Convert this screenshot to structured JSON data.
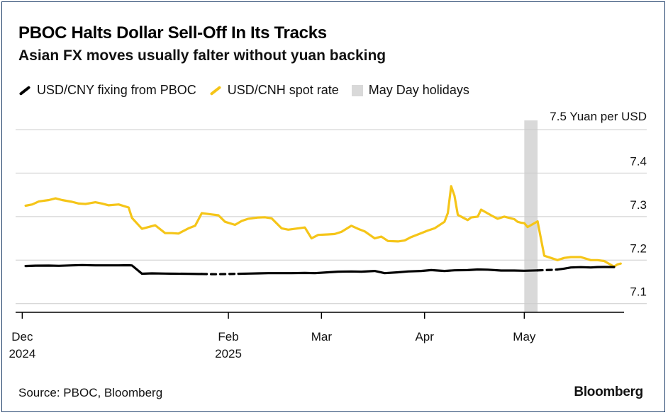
{
  "chart_data": {
    "type": "line",
    "title": "PBOC Halts Dollar Sell-Off In Its Tracks",
    "subtitle": "Asian FX moves usually falter without yuan backing",
    "y_unit_label": "7.5 Yuan per USD",
    "ylim": [
      7.08,
      7.5
    ],
    "yticks": [
      7.1,
      7.2,
      7.3,
      7.4
    ],
    "ytick_labels": [
      "7.1",
      "7.2",
      "7.3",
      "7.4"
    ],
    "xlim": [
      "2024-11-29",
      "2025-05-31"
    ],
    "xticks": [
      {
        "date": "2024-12-01",
        "label": "Dec",
        "label2": "2024"
      },
      {
        "date": "2025-02-01",
        "label": "Feb",
        "label2": "2025"
      },
      {
        "date": "2025-03-01",
        "label": "Mar",
        "label2": ""
      },
      {
        "date": "2025-04-01",
        "label": "Apr",
        "label2": ""
      },
      {
        "date": "2025-05-01",
        "label": "May",
        "label2": ""
      }
    ],
    "grid": true,
    "legend_position": "top-left",
    "colors": {
      "fixing": "#000000",
      "spot": "#f5c518",
      "holiday": "#d9d9d9",
      "grid": "#cccccc",
      "axis": "#000000"
    },
    "shaded_regions": [
      {
        "name": "May Day holidays",
        "start": "2025-05-01",
        "end": "2025-05-05"
      }
    ],
    "series": [
      {
        "name": "USD/CNY fixing from PBOC",
        "color": "#000000",
        "segments": [
          {
            "style": "solid",
            "points": [
              [
                "2024-12-02",
                7.1865
              ],
              [
                "2024-12-05",
                7.1872
              ],
              [
                "2024-12-09",
                7.1875
              ],
              [
                "2024-12-12",
                7.187
              ],
              [
                "2024-12-16",
                7.188
              ],
              [
                "2024-12-19",
                7.1885
              ],
              [
                "2024-12-23",
                7.188
              ],
              [
                "2024-12-26",
                7.188
              ],
              [
                "2024-12-30",
                7.188
              ],
              [
                "2025-01-02",
                7.1882
              ],
              [
                "2025-01-03",
                7.1878
              ],
              [
                "2025-01-06",
                7.1688
              ],
              [
                "2025-01-09",
                7.1695
              ],
              [
                "2025-01-13",
                7.169
              ],
              [
                "2025-01-16",
                7.1688
              ],
              [
                "2025-01-20",
                7.1685
              ],
              [
                "2025-01-23",
                7.168
              ],
              [
                "2025-01-24",
                7.168
              ]
            ]
          },
          {
            "style": "dashed",
            "points": [
              [
                "2025-01-24",
                7.168
              ],
              [
                "2025-01-28",
                7.1675
              ],
              [
                "2025-02-01",
                7.168
              ],
              [
                "2025-02-04",
                7.1685
              ]
            ]
          },
          {
            "style": "solid",
            "points": [
              [
                "2025-02-04",
                7.1685
              ],
              [
                "2025-02-07",
                7.169
              ],
              [
                "2025-02-10",
                7.1695
              ],
              [
                "2025-02-13",
                7.17
              ],
              [
                "2025-02-17",
                7.17
              ],
              [
                "2025-02-20",
                7.17
              ],
              [
                "2025-02-24",
                7.1705
              ],
              [
                "2025-02-27",
                7.17
              ],
              [
                "2025-03-03",
                7.172
              ],
              [
                "2025-03-06",
                7.1735
              ],
              [
                "2025-03-10",
                7.174
              ],
              [
                "2025-03-13",
                7.1735
              ],
              [
                "2025-03-17",
                7.175
              ],
              [
                "2025-03-20",
                7.17
              ],
              [
                "2025-03-24",
                7.172
              ],
              [
                "2025-03-27",
                7.174
              ],
              [
                "2025-03-31",
                7.175
              ],
              [
                "2025-04-03",
                7.177
              ],
              [
                "2025-04-07",
                7.175
              ],
              [
                "2025-04-10",
                7.1765
              ],
              [
                "2025-04-14",
                7.177
              ],
              [
                "2025-04-17",
                7.1785
              ],
              [
                "2025-04-20",
                7.178
              ],
              [
                "2025-04-24",
                7.176
              ],
              [
                "2025-04-28",
                7.176
              ],
              [
                "2025-05-01",
                7.1755
              ],
              [
                "2025-05-05",
                7.1763
              ]
            ]
          },
          {
            "style": "dashed",
            "points": [
              [
                "2025-05-05",
                7.1763
              ],
              [
                "2025-05-07",
                7.177
              ],
              [
                "2025-05-09",
                7.1775
              ],
              [
                "2025-05-11",
                7.1783
              ]
            ]
          },
          {
            "style": "solid",
            "points": [
              [
                "2025-05-11",
                7.1783
              ],
              [
                "2025-05-13",
                7.1805
              ],
              [
                "2025-05-15",
                7.183
              ],
              [
                "2025-05-18",
                7.1838
              ],
              [
                "2025-05-21",
                7.183
              ],
              [
                "2025-05-23",
                7.184
              ],
              [
                "2025-05-25",
                7.1842
              ],
              [
                "2025-05-28",
                7.184
              ]
            ]
          }
        ]
      },
      {
        "name": "USD/CNH spot rate",
        "color": "#f5c518",
        "points": [
          [
            "2024-12-02",
            7.325
          ],
          [
            "2024-12-04",
            7.328
          ],
          [
            "2024-12-06",
            7.335
          ],
          [
            "2024-12-09",
            7.338
          ],
          [
            "2024-12-11",
            7.342
          ],
          [
            "2024-12-13",
            7.338
          ],
          [
            "2024-12-16",
            7.334
          ],
          [
            "2024-12-18",
            7.33
          ],
          [
            "2024-12-20",
            7.329
          ],
          [
            "2024-12-23",
            7.333
          ],
          [
            "2024-12-25",
            7.33
          ],
          [
            "2024-12-27",
            7.326
          ],
          [
            "2024-12-30",
            7.328
          ],
          [
            "2025-01-02",
            7.321
          ],
          [
            "2025-01-03",
            7.297
          ],
          [
            "2025-01-06",
            7.272
          ],
          [
            "2025-01-08",
            7.276
          ],
          [
            "2025-01-10",
            7.28
          ],
          [
            "2025-01-13",
            7.262
          ],
          [
            "2025-01-15",
            7.262
          ],
          [
            "2025-01-17",
            7.261
          ],
          [
            "2025-01-20",
            7.273
          ],
          [
            "2025-01-22",
            7.279
          ],
          [
            "2025-01-24",
            7.308
          ],
          [
            "2025-01-27",
            7.305
          ],
          [
            "2025-01-29",
            7.303
          ],
          [
            "2025-01-31",
            7.288
          ],
          [
            "2025-02-03",
            7.281
          ],
          [
            "2025-02-05",
            7.29
          ],
          [
            "2025-02-07",
            7.295
          ],
          [
            "2025-02-10",
            7.298
          ],
          [
            "2025-02-12",
            7.2985
          ],
          [
            "2025-02-14",
            7.296
          ],
          [
            "2025-02-17",
            7.273
          ],
          [
            "2025-02-19",
            7.27
          ],
          [
            "2025-02-21",
            7.272
          ],
          [
            "2025-02-24",
            7.275
          ],
          [
            "2025-02-26",
            7.25
          ],
          [
            "2025-02-28",
            7.258
          ],
          [
            "2025-03-03",
            7.259
          ],
          [
            "2025-03-05",
            7.26
          ],
          [
            "2025-03-07",
            7.265
          ],
          [
            "2025-03-10",
            7.279
          ],
          [
            "2025-03-12",
            7.272
          ],
          [
            "2025-03-14",
            7.266
          ],
          [
            "2025-03-17",
            7.25
          ],
          [
            "2025-03-19",
            7.254
          ],
          [
            "2025-03-21",
            7.244
          ],
          [
            "2025-03-24",
            7.243
          ],
          [
            "2025-03-26",
            7.245
          ],
          [
            "2025-03-28",
            7.253
          ],
          [
            "2025-03-31",
            7.262
          ],
          [
            "2025-04-02",
            7.268
          ],
          [
            "2025-04-04",
            7.273
          ],
          [
            "2025-04-07",
            7.288
          ],
          [
            "2025-04-08",
            7.308
          ],
          [
            "2025-04-09",
            7.37
          ],
          [
            "2025-04-10",
            7.348
          ],
          [
            "2025-04-11",
            7.304
          ],
          [
            "2025-04-14",
            7.292
          ],
          [
            "2025-04-15",
            7.298
          ],
          [
            "2025-04-17",
            7.3
          ],
          [
            "2025-04-18",
            7.316
          ],
          [
            "2025-04-21",
            7.303
          ],
          [
            "2025-04-23",
            7.295
          ],
          [
            "2025-04-25",
            7.3
          ],
          [
            "2025-04-28",
            7.294
          ],
          [
            "2025-04-29",
            7.288
          ],
          [
            "2025-04-30",
            7.286
          ],
          [
            "2025-05-01",
            7.285
          ],
          [
            "2025-05-02",
            7.276
          ],
          [
            "2025-05-05",
            7.289
          ],
          [
            "2025-05-07",
            7.21
          ],
          [
            "2025-05-09",
            7.205
          ],
          [
            "2025-05-11",
            7.2
          ],
          [
            "2025-05-13",
            7.205
          ],
          [
            "2025-05-15",
            7.207
          ],
          [
            "2025-05-18",
            7.207
          ],
          [
            "2025-05-21",
            7.2
          ],
          [
            "2025-05-23",
            7.2
          ],
          [
            "2025-05-25",
            7.198
          ],
          [
            "2025-05-28",
            7.185
          ],
          [
            "2025-05-29",
            7.19
          ],
          [
            "2025-05-30",
            7.192
          ]
        ]
      }
    ]
  },
  "legend": {
    "items": [
      {
        "label": "USD/CNY fixing from PBOC",
        "color": "#000000",
        "shape": "line"
      },
      {
        "label": "USD/CNH spot rate",
        "color": "#f5c518",
        "shape": "line"
      },
      {
        "label": "May Day holidays",
        "color": "#d9d9d9",
        "shape": "box"
      }
    ]
  },
  "footer": {
    "source": "Source: PBOC, Bloomberg",
    "brand": "Bloomberg"
  }
}
